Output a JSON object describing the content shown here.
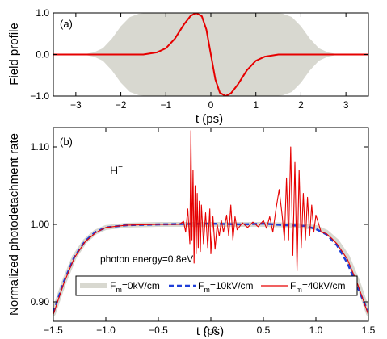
{
  "chart_data": [
    {
      "panel": "(a)",
      "type": "line",
      "xlabel": "t (ps)",
      "ylabel": "Field profile",
      "xlim": [
        -3.5,
        3.5
      ],
      "ylim": [
        -1.0,
        1.0
      ],
      "xticks": [
        "−3",
        "−2",
        "−1",
        "0",
        "1",
        "2",
        "3"
      ],
      "yticks": [
        "−1.0",
        "0.0",
        "1.0"
      ],
      "grid": false,
      "series": [
        {
          "role": "envelope",
          "color": "#d8d8d0",
          "points": [
            [
              -3.5,
              0
            ],
            [
              -3.0,
              0.0
            ],
            [
              -2.8,
              0.01
            ],
            [
              -2.6,
              0.05
            ],
            [
              -2.4,
              0.15
            ],
            [
              -2.2,
              0.38
            ],
            [
              -2.0,
              0.68
            ],
            [
              -1.8,
              0.9
            ],
            [
              -1.6,
              0.98
            ],
            [
              -1.4,
              1.0
            ],
            [
              0,
              1.0
            ],
            [
              1.4,
              1.0
            ],
            [
              1.6,
              0.98
            ],
            [
              1.8,
              0.9
            ],
            [
              2.0,
              0.68
            ],
            [
              2.2,
              0.38
            ],
            [
              2.4,
              0.15
            ],
            [
              2.6,
              0.05
            ],
            [
              2.8,
              0.01
            ],
            [
              3.0,
              0.0
            ],
            [
              3.5,
              0
            ]
          ]
        },
        {
          "role": "field",
          "color": "#e60000",
          "points": [
            [
              -3.5,
              0
            ],
            [
              -1.5,
              0.0
            ],
            [
              -1.2,
              0.05
            ],
            [
              -1.0,
              0.15
            ],
            [
              -0.8,
              0.38
            ],
            [
              -0.6,
              0.72
            ],
            [
              -0.45,
              0.93
            ],
            [
              -0.33,
              1.0
            ],
            [
              -0.2,
              0.92
            ],
            [
              -0.1,
              0.6
            ],
            [
              0,
              0.0
            ],
            [
              0.1,
              -0.6
            ],
            [
              0.2,
              -0.92
            ],
            [
              0.33,
              -1.0
            ],
            [
              0.45,
              -0.93
            ],
            [
              0.6,
              -0.72
            ],
            [
              0.8,
              -0.38
            ],
            [
              1.0,
              -0.15
            ],
            [
              1.2,
              -0.05
            ],
            [
              1.5,
              0.0
            ],
            [
              3.5,
              0
            ]
          ]
        }
      ],
      "annotations": []
    },
    {
      "panel": "(b)",
      "type": "line",
      "xlabel": "t (ps)",
      "ylabel": "Normalized photodetachment rate",
      "xlim": [
        -1.5,
        1.5
      ],
      "ylim": [
        0.875,
        1.125
      ],
      "xticks": [
        "−1.5",
        "−1.0",
        "−0.5",
        "0.0",
        "0.5",
        "1.0",
        "1.5"
      ],
      "yticks": [
        "0.90",
        "1.00",
        "1.10"
      ],
      "grid": false,
      "legend_position": "bottom",
      "annotations": [
        {
          "text": "H",
          "sup": "−",
          "x": -0.72,
          "y": 1.075
        },
        {
          "text": "photon energy=0.8eV",
          "x": -0.9,
          "y": 0.93
        }
      ],
      "series": [
        {
          "legend_prefix": "F",
          "legend_sub": "m",
          "legend_value": "=0kV/cm",
          "color": "#d8d8d0",
          "points": [
            [
              -1.5,
              0.885
            ],
            [
              -1.4,
              0.925
            ],
            [
              -1.3,
              0.958
            ],
            [
              -1.2,
              0.978
            ],
            [
              -1.1,
              0.99
            ],
            [
              -1.0,
              0.996
            ],
            [
              -0.8,
              0.999
            ],
            [
              -0.5,
              1.0
            ],
            [
              0,
              1.0
            ],
            [
              0.5,
              1.0
            ],
            [
              0.8,
              0.999
            ],
            [
              1.0,
              0.996
            ],
            [
              1.1,
              0.99
            ],
            [
              1.2,
              0.978
            ],
            [
              1.3,
              0.958
            ],
            [
              1.4,
              0.925
            ],
            [
              1.5,
              0.885
            ]
          ]
        },
        {
          "legend_prefix": "F",
          "legend_sub": "m",
          "legend_value": "=10kV/cm",
          "color": "#1f3fd8",
          "points": [
            [
              -1.5,
              0.886
            ],
            [
              -1.4,
              0.926
            ],
            [
              -1.3,
              0.958
            ],
            [
              -1.2,
              0.978
            ],
            [
              -1.1,
              0.99
            ],
            [
              -1.0,
              0.996
            ],
            [
              -0.8,
              0.999
            ],
            [
              -0.5,
              1.0
            ],
            [
              0,
              1.001
            ],
            [
              0.3,
              1.0
            ],
            [
              0.5,
              1.001
            ],
            [
              0.7,
              0.999
            ],
            [
              0.9,
              0.998
            ],
            [
              1.0,
              0.994
            ],
            [
              1.1,
              0.987
            ],
            [
              1.2,
              0.973
            ],
            [
              1.3,
              0.95
            ],
            [
              1.4,
              0.918
            ],
            [
              1.5,
              0.886
            ]
          ]
        },
        {
          "legend_prefix": "F",
          "legend_sub": "m",
          "legend_value": "=40kV/cm",
          "color": "#e60000",
          "points": [
            [
              -1.5,
              0.884
            ],
            [
              -1.4,
              0.924
            ],
            [
              -1.3,
              0.957
            ],
            [
              -1.2,
              0.977
            ],
            [
              -1.1,
              0.989
            ],
            [
              -1.0,
              0.996
            ],
            [
              -0.8,
              0.999
            ],
            [
              -0.5,
              1.0
            ],
            [
              -0.3,
              1.0
            ],
            [
              -0.26,
              1.004
            ],
            [
              -0.24,
              0.99
            ],
            [
              -0.22,
              1.02
            ],
            [
              -0.2,
              0.975
            ],
            [
              -0.19,
              1.121
            ],
            [
              -0.18,
              0.98
            ],
            [
              -0.17,
              1.07
            ],
            [
              -0.16,
              0.95
            ],
            [
              -0.15,
              1.05
            ],
            [
              -0.14,
              0.962
            ],
            [
              -0.13,
              1.04
            ],
            [
              -0.12,
              0.97
            ],
            [
              -0.11,
              1.03
            ],
            [
              -0.1,
              0.965
            ],
            [
              -0.09,
              1.025
            ],
            [
              -0.07,
              0.975
            ],
            [
              -0.05,
              1.015
            ],
            [
              -0.03,
              0.97
            ],
            [
              -0.01,
              1.02
            ],
            [
              0.0,
              0.962
            ],
            [
              0.02,
              1.01
            ],
            [
              0.04,
              0.968
            ],
            [
              0.06,
              1.0
            ],
            [
              0.08,
              0.985
            ],
            [
              0.1,
              1.005
            ],
            [
              0.12,
              0.99
            ],
            [
              0.15,
              1.012
            ],
            [
              0.17,
              0.985
            ],
            [
              0.19,
              1.025
            ],
            [
              0.21,
              0.98
            ],
            [
              0.23,
              1.01
            ],
            [
              0.25,
              0.993
            ],
            [
              0.3,
              1.002
            ],
            [
              0.35,
              0.996
            ],
            [
              0.4,
              1.003
            ],
            [
              0.45,
              0.997
            ],
            [
              0.5,
              1.005
            ],
            [
              0.53,
              0.995
            ],
            [
              0.56,
              1.01
            ],
            [
              0.59,
              0.99
            ],
            [
              0.62,
              1.02
            ],
            [
              0.65,
              1.045
            ],
            [
              0.68,
              1.01
            ],
            [
              0.7,
              0.98
            ],
            [
              0.72,
              1.06
            ],
            [
              0.74,
              0.98
            ],
            [
              0.76,
              1.1
            ],
            [
              0.78,
              0.96
            ],
            [
              0.8,
              1.08
            ],
            [
              0.82,
              0.94
            ],
            [
              0.84,
              1.07
            ],
            [
              0.86,
              0.97
            ],
            [
              0.88,
              1.04
            ],
            [
              0.9,
              0.98
            ],
            [
              0.92,
              1.035
            ],
            [
              0.94,
              0.985
            ],
            [
              0.96,
              1.025
            ],
            [
              0.98,
              0.99
            ],
            [
              1.0,
              1.012
            ],
            [
              1.05,
              0.99
            ],
            [
              1.1,
              0.988
            ],
            [
              1.15,
              0.982
            ],
            [
              1.2,
              0.975
            ],
            [
              1.3,
              0.955
            ],
            [
              1.4,
              0.922
            ],
            [
              1.5,
              0.883
            ]
          ]
        }
      ]
    }
  ]
}
